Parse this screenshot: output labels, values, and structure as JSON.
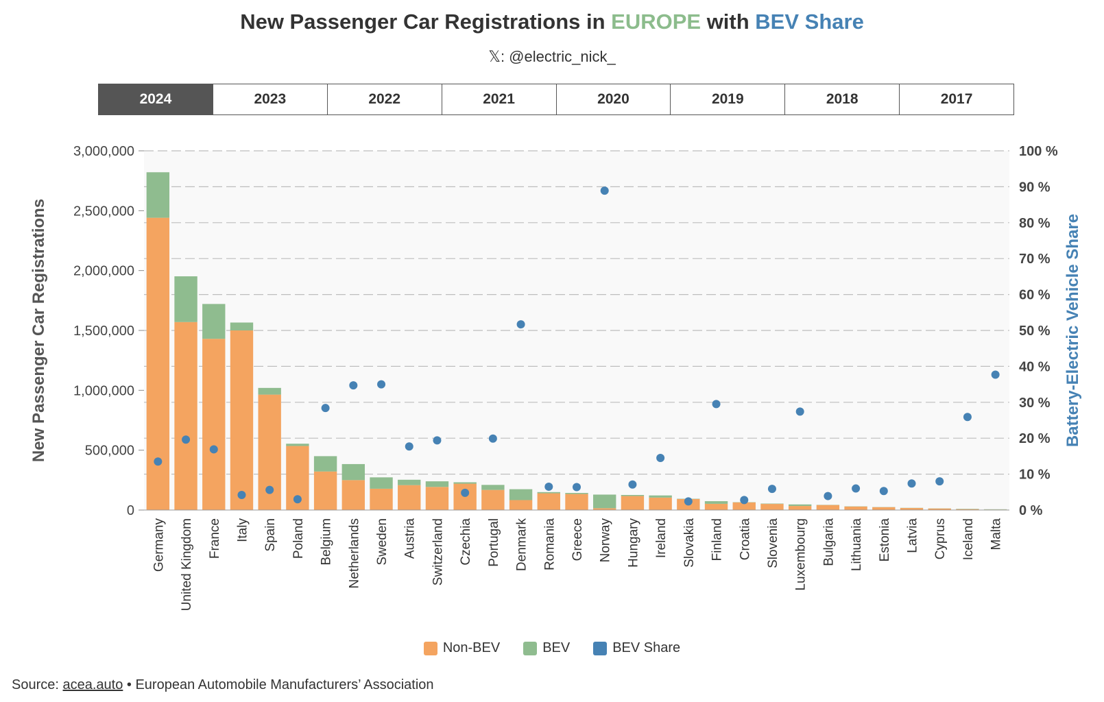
{
  "header": {
    "title_part1": "New Passenger Car Registrations in ",
    "title_europe": "EUROPE",
    "title_part2": " with ",
    "title_bev": "BEV Share",
    "subtitle": "𝕏: @electric_nick_"
  },
  "tabs": [
    {
      "label": "2024",
      "active": true
    },
    {
      "label": "2023",
      "active": false
    },
    {
      "label": "2022",
      "active": false
    },
    {
      "label": "2021",
      "active": false
    },
    {
      "label": "2020",
      "active": false
    },
    {
      "label": "2019",
      "active": false
    },
    {
      "label": "2018",
      "active": false
    },
    {
      "label": "2017",
      "active": false
    }
  ],
  "legend": {
    "non_bev": "Non-BEV",
    "bev": "BEV",
    "bev_share": "BEV Share"
  },
  "source": {
    "prefix": "Source: ",
    "link": "acea.auto",
    "suffix": " • European Automobile Manufacturers’ Association"
  },
  "colors": {
    "non_bev": "#f4a460",
    "bev": "#8fbc8f",
    "share": "#4682b4",
    "title_europe": "#8cbc8c",
    "title_bev": "#4682b4"
  },
  "chart_data": {
    "type": "bar",
    "stacked": true,
    "ylabel": "New Passenger Car Registrations",
    "y2label": "Battery-Electric Vehicle Share",
    "ylim": [
      0,
      3000000
    ],
    "yticks": [
      "0",
      "500,000",
      "1,000,000",
      "1,500,000",
      "2,000,000",
      "2,500,000",
      "3,000,000"
    ],
    "y2lim": [
      0,
      100
    ],
    "y2ticks": [
      "0 %",
      "10 %",
      "20 %",
      "30 %",
      "40 %",
      "50 %",
      "60 %",
      "70 %",
      "80 %",
      "90 %",
      "100 %"
    ],
    "grid": true,
    "legend_position": "bottom",
    "categories": [
      "Germany",
      "United Kingdom",
      "France",
      "Italy",
      "Spain",
      "Poland",
      "Belgium",
      "Netherlands",
      "Sweden",
      "Austria",
      "Switzerland",
      "Czechia",
      "Portugal",
      "Denmark",
      "Romania",
      "Greece",
      "Norway",
      "Hungary",
      "Ireland",
      "Slovakia",
      "Finland",
      "Croatia",
      "Slovenia",
      "Luxembourg",
      "Bulgaria",
      "Lithuania",
      "Estonia",
      "Latvia",
      "Cyprus",
      "Iceland",
      "Malta"
    ],
    "series": [
      {
        "name": "Non-BEV",
        "values": [
          2441000,
          1570000,
          1430000,
          1500000,
          964000,
          535000,
          322000,
          250000,
          178000,
          208000,
          193000,
          220000,
          168000,
          83000,
          140000,
          134000,
          15000,
          117000,
          104000,
          92000,
          52000,
          64000,
          51000,
          34000,
          42000,
          29000,
          24000,
          17000,
          13000,
          7500,
          4200
        ]
      },
      {
        "name": "BEV",
        "values": [
          380000,
          382000,
          291000,
          66000,
          56000,
          19000,
          128000,
          134000,
          95000,
          45000,
          47000,
          12000,
          42000,
          91000,
          10000,
          9000,
          114000,
          9000,
          18000,
          2500,
          22000,
          2000,
          3200,
          13000,
          1700,
          1900,
          1300,
          1400,
          1150,
          2600,
          2500
        ]
      },
      {
        "name": "BEV Share",
        "axis": "right",
        "values": [
          13.5,
          19.6,
          16.9,
          4.2,
          5.6,
          3.0,
          28.4,
          34.7,
          35.0,
          17.7,
          19.4,
          4.8,
          19.9,
          51.7,
          6.5,
          6.4,
          88.9,
          7.1,
          14.5,
          2.4,
          29.5,
          2.8,
          5.9,
          27.4,
          3.9,
          6.0,
          5.3,
          7.4,
          8.0,
          25.9,
          37.7
        ]
      }
    ]
  }
}
